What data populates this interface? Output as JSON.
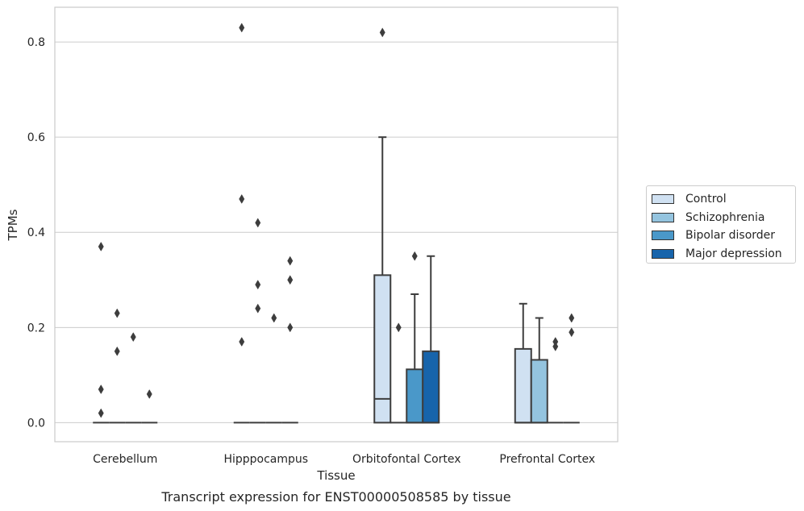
{
  "chart_data": {
    "type": "box",
    "title": "Transcript expression for ENST00000508585 by tissue",
    "xlabel": "Tissue",
    "ylabel": "TPMs",
    "ylim": [
      -0.04,
      0.873
    ],
    "yticks": [
      0.0,
      0.2,
      0.4,
      0.6,
      0.8
    ],
    "ytick_labels": [
      "0.0",
      "0.2",
      "0.4",
      "0.6",
      "0.8"
    ],
    "categories": [
      "Cerebellum",
      "Hipppocampus",
      "Orbitofontal Cortex",
      "Prefrontal Cortex"
    ],
    "grid": "horizontal",
    "legend_position": "outside-right",
    "series": [
      {
        "name": "Control",
        "color": "#d0e1f2",
        "boxes": [
          {
            "q1": 0.0,
            "median": 0.0,
            "q3": 0.0,
            "whislo": 0.0,
            "whishi": 0.0,
            "fliers": [
              0.37,
              0.07,
              0.02
            ]
          },
          {
            "q1": 0.0,
            "median": 0.0,
            "q3": 0.0,
            "whislo": 0.0,
            "whishi": 0.0,
            "fliers": [
              0.83,
              0.47,
              0.17
            ]
          },
          {
            "q1": 0.0,
            "median": 0.05,
            "q3": 0.31,
            "whislo": 0.0,
            "whishi": 0.6,
            "fliers": [
              0.82
            ]
          },
          {
            "q1": 0.0,
            "median": 0.0,
            "q3": 0.155,
            "whislo": 0.0,
            "whishi": 0.25,
            "fliers": []
          }
        ]
      },
      {
        "name": "Schizophrenia",
        "color": "#94c4df",
        "boxes": [
          {
            "q1": 0.0,
            "median": 0.0,
            "q3": 0.0,
            "whislo": 0.0,
            "whishi": 0.0,
            "fliers": [
              0.23,
              0.15
            ]
          },
          {
            "q1": 0.0,
            "median": 0.0,
            "q3": 0.0,
            "whislo": 0.0,
            "whishi": 0.0,
            "fliers": [
              0.42,
              0.29,
              0.24
            ]
          },
          {
            "q1": 0.0,
            "median": 0.0,
            "q3": 0.0,
            "whislo": 0.0,
            "whishi": 0.0,
            "fliers": [
              0.2
            ]
          },
          {
            "q1": 0.0,
            "median": 0.0,
            "q3": 0.132,
            "whislo": 0.0,
            "whishi": 0.22,
            "fliers": []
          }
        ]
      },
      {
        "name": "Bipolar disorder",
        "color": "#4a98c9",
        "boxes": [
          {
            "q1": 0.0,
            "median": 0.0,
            "q3": 0.0,
            "whislo": 0.0,
            "whishi": 0.0,
            "fliers": [
              0.18
            ]
          },
          {
            "q1": 0.0,
            "median": 0.0,
            "q3": 0.0,
            "whislo": 0.0,
            "whishi": 0.0,
            "fliers": [
              0.22
            ]
          },
          {
            "q1": 0.0,
            "median": 0.0,
            "q3": 0.112,
            "whislo": 0.0,
            "whishi": 0.27,
            "fliers": [
              0.35
            ]
          },
          {
            "q1": 0.0,
            "median": 0.0,
            "q3": 0.0,
            "whislo": 0.0,
            "whishi": 0.0,
            "fliers": [
              0.17,
              0.16
            ]
          }
        ]
      },
      {
        "name": "Major depression",
        "color": "#1764ab",
        "boxes": [
          {
            "q1": 0.0,
            "median": 0.0,
            "q3": 0.0,
            "whislo": 0.0,
            "whishi": 0.0,
            "fliers": [
              0.06
            ]
          },
          {
            "q1": 0.0,
            "median": 0.0,
            "q3": 0.0,
            "whislo": 0.0,
            "whishi": 0.0,
            "fliers": [
              0.34,
              0.3,
              0.2
            ]
          },
          {
            "q1": 0.0,
            "median": 0.0,
            "q3": 0.15,
            "whislo": 0.0,
            "whishi": 0.35,
            "fliers": []
          },
          {
            "q1": 0.0,
            "median": 0.0,
            "q3": 0.0,
            "whislo": 0.0,
            "whishi": 0.0,
            "fliers": [
              0.22,
              0.19
            ]
          }
        ]
      }
    ]
  }
}
